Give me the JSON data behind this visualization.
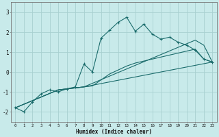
{
  "xlabel": "Humidex (Indice chaleur)",
  "bg_color": "#c8eaea",
  "grid_color": "#a8d0d0",
  "line_color": "#1a6b6b",
  "xlim": [
    -0.5,
    23.5
  ],
  "ylim": [
    -2.5,
    3.5
  ],
  "xticks": [
    0,
    1,
    2,
    3,
    4,
    5,
    6,
    7,
    8,
    9,
    10,
    11,
    12,
    13,
    14,
    15,
    16,
    17,
    18,
    19,
    20,
    21,
    22,
    23
  ],
  "yticks": [
    -2,
    -1,
    0,
    1,
    2,
    3
  ],
  "lines": [
    {
      "x": [
        0,
        1,
        2,
        3,
        4,
        5,
        6,
        7,
        8,
        9,
        10,
        11,
        12,
        13,
        14,
        15,
        16,
        17,
        18,
        19,
        20,
        21,
        22,
        23
      ],
      "y": [
        -1.8,
        -2.0,
        -1.5,
        -1.1,
        -0.9,
        -1.0,
        -0.85,
        -0.75,
        0.4,
        0.0,
        1.7,
        2.1,
        2.5,
        2.75,
        2.05,
        2.4,
        1.9,
        1.65,
        1.75,
        1.5,
        1.35,
        1.1,
        0.65,
        0.5
      ],
      "marker": true
    },
    {
      "x": [
        0,
        5,
        6,
        7,
        8,
        9,
        10,
        11,
        12,
        13,
        14,
        15,
        16,
        17,
        18,
        19,
        20,
        21,
        22,
        23
      ],
      "y": [
        -1.8,
        -0.9,
        -0.85,
        -0.8,
        -0.75,
        -0.7,
        -0.4,
        -0.1,
        0.1,
        0.3,
        0.45,
        0.55,
        0.65,
        0.75,
        0.85,
        0.95,
        1.05,
        1.15,
        0.65,
        0.5
      ],
      "marker": false
    },
    {
      "x": [
        0,
        5,
        6,
        7,
        8,
        21,
        22,
        23
      ],
      "y": [
        -1.8,
        -0.9,
        -0.85,
        -0.8,
        -0.75,
        1.6,
        1.35,
        0.5
      ],
      "marker": false
    },
    {
      "x": [
        0,
        5,
        6,
        7,
        8,
        23
      ],
      "y": [
        -1.8,
        -0.9,
        -0.85,
        -0.8,
        -0.75,
        0.5
      ],
      "marker": false
    }
  ]
}
